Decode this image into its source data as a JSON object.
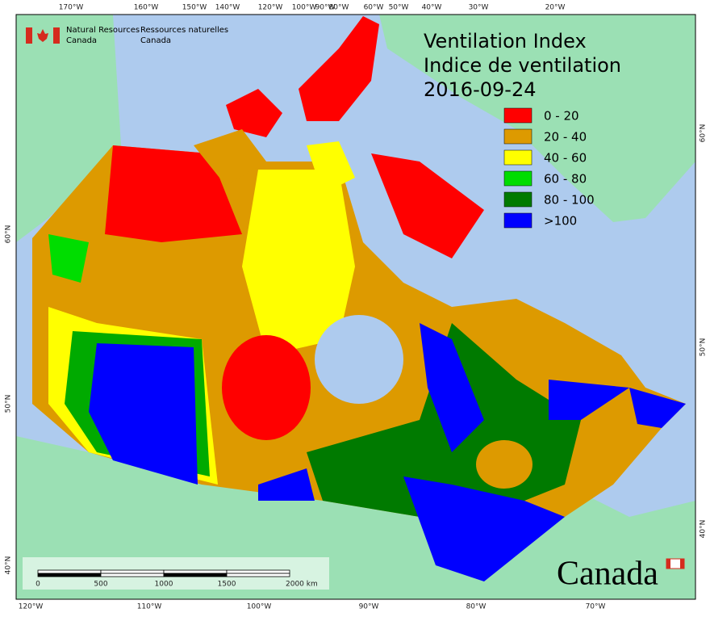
{
  "header": {
    "title_en": "Ventilation Index",
    "title_fr": "Indice de ventilation",
    "date": "2016-09-24"
  },
  "agency": {
    "en": [
      "Natural Resources",
      "Canada"
    ],
    "fr": [
      "Ressources naturelles",
      "Canada"
    ]
  },
  "legend": [
    {
      "label": "0 - 20",
      "color": "#ff0000"
    },
    {
      "label": "20 - 40",
      "color": "#dd9a00"
    },
    {
      "label": "40 - 60",
      "color": "#ffff00"
    },
    {
      "label": "60 - 80",
      "color": "#00dd00"
    },
    {
      "label": "80 - 100",
      "color": "#007a00"
    },
    {
      "label": ">100",
      "color": "#0000ff"
    }
  ],
  "graticule": {
    "top": [
      "170°W",
      "160°W",
      "150°W",
      "140°W",
      "120°W",
      "100°W",
      "90°W",
      "80°W",
      "60°W",
      "50°W",
      "40°W",
      "30°W",
      "20°W"
    ],
    "bottom": [
      "120°W",
      "110°W",
      "100°W",
      "90°W",
      "80°W",
      "70°W"
    ],
    "left": [
      "60°N",
      "50°N",
      "40°N"
    ],
    "right": [
      "60°N",
      "50°N",
      "40°N"
    ]
  },
  "scale_bar": [
    "0",
    "500",
    "1000",
    "1500",
    "2000 km"
  ],
  "wordmark": "Canada"
}
